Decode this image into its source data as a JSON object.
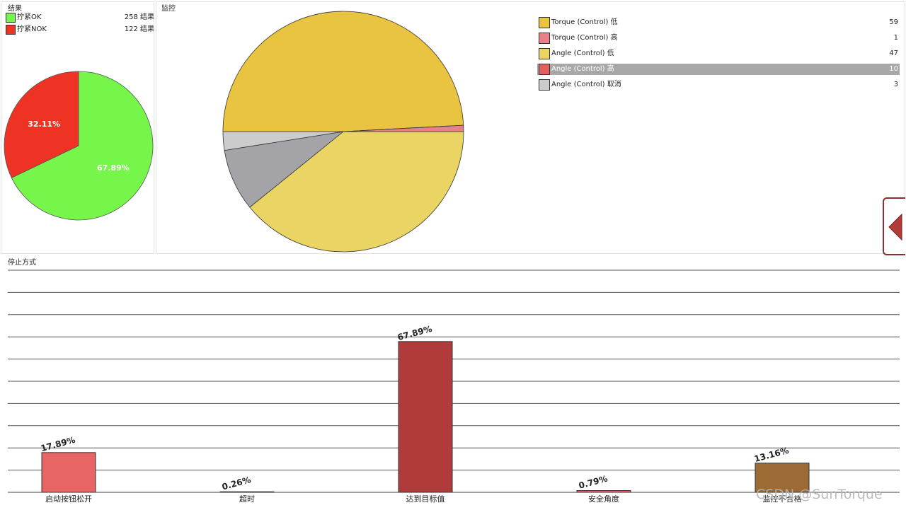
{
  "results_panel": {
    "title": "结果",
    "legend": [
      {
        "label": "拧紧OK",
        "count": "258 结果",
        "color": "#76f54a"
      },
      {
        "label": "拧紧NOK",
        "count": "122 结果",
        "color": "#ee3325"
      }
    ],
    "pie": [
      {
        "name": "拧紧OK",
        "value": 67.89,
        "label": "67.89%",
        "color": "#76f54a"
      },
      {
        "name": "拧紧NOK",
        "value": 32.11,
        "label": "32.11%",
        "color": "#ee3325"
      }
    ]
  },
  "monitor_panel": {
    "title": "监控",
    "legend": [
      {
        "label": "Torque (Control) 低",
        "count": "59",
        "value": 59,
        "color": "#e8c440",
        "selected": false
      },
      {
        "label": "Torque (Control) 高",
        "count": "1",
        "value": 1,
        "color": "#e8808a",
        "selected": false
      },
      {
        "label": "Angle (Control) 低",
        "count": "47",
        "value": 47,
        "color": "#ead463",
        "selected": false
      },
      {
        "label": "Angle (Control) 高",
        "count": "10",
        "value": 10,
        "color": "#e06060",
        "selected": true
      },
      {
        "label": "Angle (Control) 取消",
        "count": "3",
        "value": 3,
        "color": "#cccccc",
        "selected": false
      }
    ],
    "selected_slice_color": "#a3a3a8"
  },
  "stop_panel": {
    "title": "停止方式"
  },
  "chart_data": {
    "type": "bar",
    "categories": [
      "启动按钮松开",
      "超时",
      "达到目标值",
      "安全角度",
      "监控不合格"
    ],
    "values": [
      17.89,
      0.26,
      67.89,
      0.79,
      13.16
    ],
    "labels": [
      "17.89%",
      "0.26%",
      "67.89%",
      "0.79%",
      "13.16%"
    ],
    "colors": [
      "#e86566",
      "#e86566",
      "#b03b3a",
      "#e86566",
      "#9c6a35"
    ],
    "ylim": [
      0,
      100
    ],
    "grid": true
  },
  "watermark": "CSDN @SunTorque"
}
